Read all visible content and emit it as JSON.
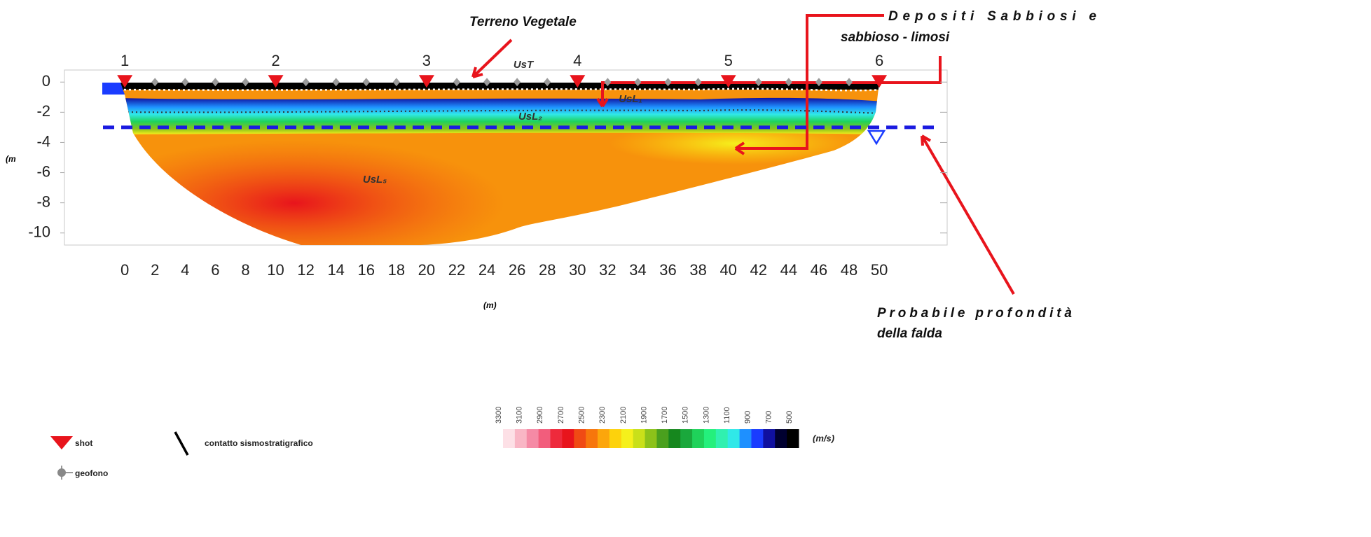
{
  "chart_data": {
    "type": "section",
    "xlabel": "(m)",
    "ylabel": "(m",
    "xlim": [
      -4,
      54.5
    ],
    "ylim": [
      -10.8,
      0.8
    ],
    "xticks": [
      0,
      2,
      4,
      6,
      8,
      10,
      12,
      14,
      16,
      18,
      20,
      22,
      24,
      26,
      28,
      30,
      32,
      34,
      36,
      38,
      40,
      42,
      44,
      46,
      48,
      50
    ],
    "yticks": [
      0,
      -2,
      -4,
      -6,
      -8,
      -10
    ],
    "shots": {
      "x": [
        0,
        10,
        20,
        30,
        40,
        50
      ],
      "labels": [
        "1",
        "2",
        "3",
        "4",
        "5",
        "6"
      ],
      "color": "#e8141c"
    },
    "geophones": {
      "x": [
        2,
        4,
        6,
        8,
        12,
        14,
        16,
        18,
        22,
        24,
        26,
        28,
        32,
        34,
        36,
        38,
        42,
        44,
        46,
        48
      ],
      "color": "#9a9a9a"
    },
    "water_table": {
      "depth": -3,
      "color": "#1a1ae0"
    },
    "layers": [
      "UsT",
      "UsL₁",
      "UsL₂",
      "UsL₅"
    ],
    "annotations": [
      {
        "lines": [
          "Terreno Vegetale"
        ]
      },
      {
        "lines": [
          "Depositi   Sabbiosi   e",
          "sabbioso - limosi"
        ]
      },
      {
        "lines": [
          "Probabile   profondità",
          "della falda"
        ]
      }
    ],
    "legend": [
      "shot",
      "geofono",
      "contatto sismostratigrafico"
    ],
    "colorbar": {
      "ticks": [
        3300,
        3100,
        2900,
        2700,
        2500,
        2300,
        2100,
        1900,
        1700,
        1500,
        1300,
        1100,
        900,
        700,
        500
      ],
      "unit": "(m/s)",
      "colors": [
        "#fde0e6",
        "#f9b6c5",
        "#f58aa5",
        "#f25d7c",
        "#ee2a3c",
        "#e8141c",
        "#f04a14",
        "#f7760c",
        "#fca60c",
        "#fdd20c",
        "#f5f01c",
        "#c9e01a",
        "#8cc21a",
        "#4aa01e",
        "#16871e",
        "#1aa83c",
        "#1fd25a",
        "#24f07c",
        "#30f0b0",
        "#30e8e8",
        "#1e90ff",
        "#1a3cff",
        "#1010a0",
        "#000030",
        "#000000"
      ]
    }
  }
}
